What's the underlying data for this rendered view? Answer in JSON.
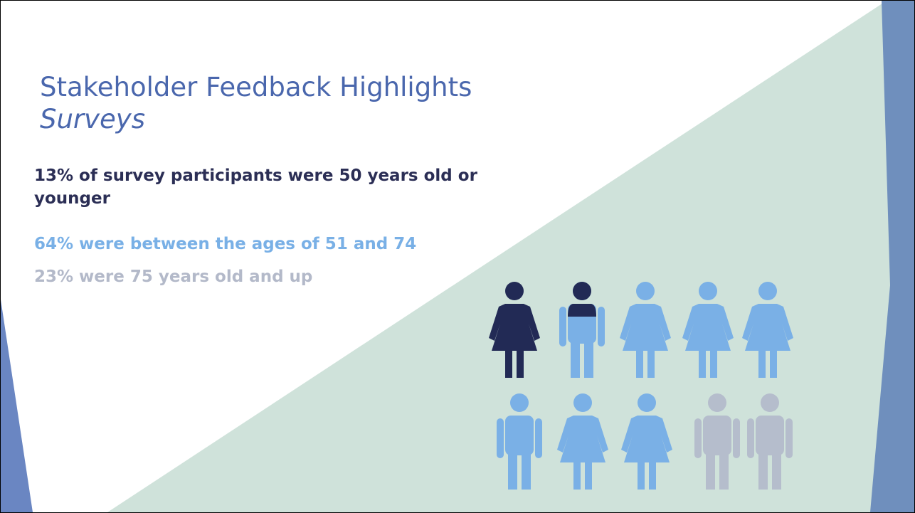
{
  "header": {
    "title": "Stakeholder Feedback Highlights",
    "subtitle": "Surveys"
  },
  "points": [
    "13% of survey participants were 50 years old or younger",
    "64% were between the ages of 51 and 74",
    "23% were 75 years old and up"
  ]
}
